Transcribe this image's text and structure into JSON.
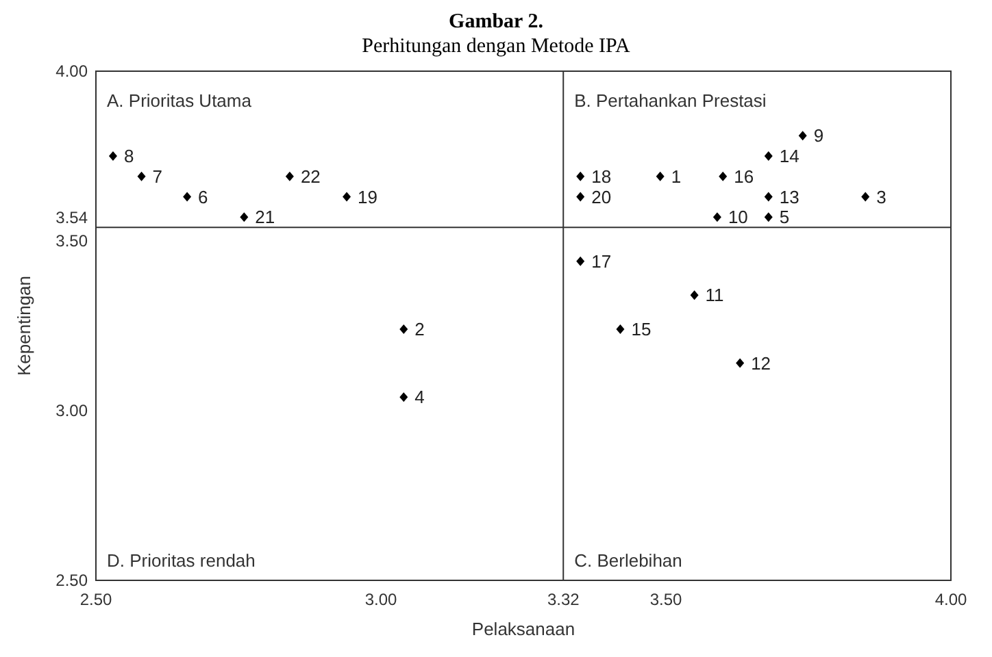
{
  "chart_data": {
    "type": "scatter",
    "title": "Gambar 2.",
    "subtitle": "Perhitungan dengan Metode IPA",
    "xlabel": "Pelaksanaan",
    "ylabel": "Kepentingan",
    "series": [
      {
        "name": "1",
        "x": [
          3.49
        ],
        "values": [
          3.69
        ]
      },
      {
        "name": "2",
        "x": [
          3.04
        ],
        "values": [
          3.24
        ]
      },
      {
        "name": "3",
        "x": [
          3.85
        ],
        "values": [
          3.63
        ]
      },
      {
        "name": "4",
        "x": [
          3.04
        ],
        "values": [
          3.04
        ]
      },
      {
        "name": "5",
        "x": [
          3.68
        ],
        "values": [
          3.57
        ]
      },
      {
        "name": "6",
        "x": [
          2.66
        ],
        "values": [
          3.63
        ]
      },
      {
        "name": "7",
        "x": [
          2.58
        ],
        "values": [
          3.69
        ]
      },
      {
        "name": "8",
        "x": [
          2.53
        ],
        "values": [
          3.75
        ]
      },
      {
        "name": "9",
        "x": [
          3.74
        ],
        "values": [
          3.81
        ]
      },
      {
        "name": "10",
        "x": [
          3.59
        ],
        "values": [
          3.57
        ]
      },
      {
        "name": "11",
        "x": [
          3.55
        ],
        "values": [
          3.34
        ]
      },
      {
        "name": "12",
        "x": [
          3.63
        ],
        "values": [
          3.14
        ]
      },
      {
        "name": "13",
        "x": [
          3.68
        ],
        "values": [
          3.63
        ]
      },
      {
        "name": "14",
        "x": [
          3.68
        ],
        "values": [
          3.75
        ]
      },
      {
        "name": "15",
        "x": [
          3.42
        ],
        "values": [
          3.24
        ]
      },
      {
        "name": "16",
        "x": [
          3.6
        ],
        "values": [
          3.69
        ]
      },
      {
        "name": "17",
        "x": [
          3.35
        ],
        "values": [
          3.44
        ]
      },
      {
        "name": "18",
        "x": [
          3.35
        ],
        "values": [
          3.69
        ]
      },
      {
        "name": "19",
        "x": [
          2.94
        ],
        "values": [
          3.63
        ]
      },
      {
        "name": "20",
        "x": [
          3.35
        ],
        "values": [
          3.63
        ]
      },
      {
        "name": "21",
        "x": [
          2.76
        ],
        "values": [
          3.57
        ]
      },
      {
        "name": "22",
        "x": [
          2.84
        ],
        "values": [
          3.69
        ]
      }
    ],
    "color": "#000000",
    "marker": "diamond",
    "xlim": [
      2.5,
      4.0
    ],
    "ylim": [
      2.5,
      4.0
    ],
    "xticks": [
      {
        "value": 2.5,
        "label": "2.50"
      },
      {
        "value": 3,
        "label": "3.00"
      },
      {
        "value": 3.5,
        "label": "3.50"
      },
      {
        "value": 4,
        "label": "4.00"
      }
    ],
    "yticks": [
      {
        "value": 2.5,
        "label": "2.50"
      },
      {
        "value": 3,
        "label": "3.00"
      },
      {
        "value": 3.5,
        "label": "3.50"
      },
      {
        "value": 4,
        "label": "4.00"
      }
    ],
    "ref_lines": [
      {
        "axis": "x",
        "value": 3.32,
        "label": "3.32"
      },
      {
        "axis": "y",
        "value": 3.54,
        "label": "3.54"
      }
    ],
    "annotations": [
      "A. Prioritas Utama",
      "B. Pertahankan Prestasi",
      "C. Berlebihan",
      "D. Prioritas rendah"
    ],
    "grid": false
  }
}
